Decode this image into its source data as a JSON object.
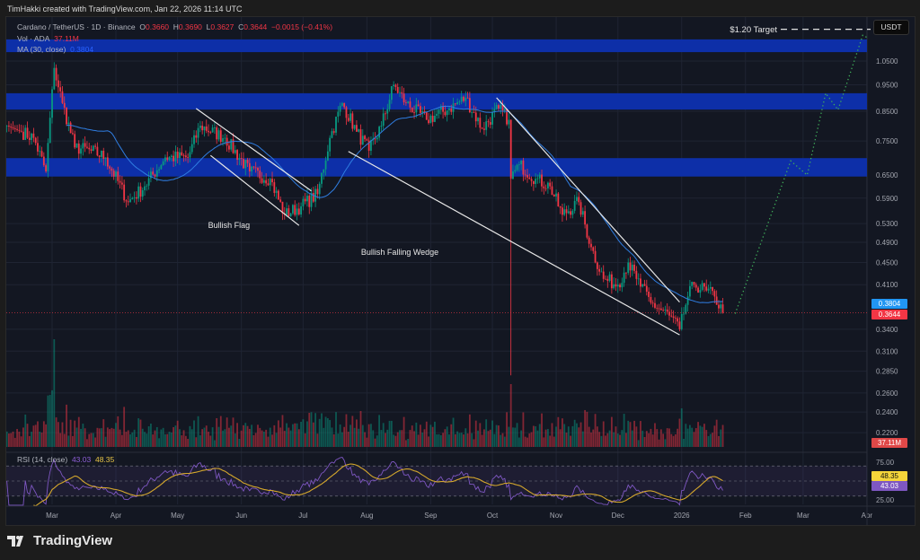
{
  "credit": "TimHakki created with TradingView.com, Jan 22, 2026 11:14 UTC",
  "legend": {
    "symbol": "Cardano / TetherUS · 1D · Binance",
    "o_label": "O",
    "o": "0.3660",
    "h_label": "H",
    "h": "0.3690",
    "l_label": "L",
    "l": "0.3627",
    "c_label": "C",
    "c": "0.3644",
    "change": "−0.0015 (−0.41%)",
    "vol_label": "Vol · ADA",
    "vol": "37.11M",
    "ma_label": "MA (30, close)",
    "ma": "0.3804",
    "rsi_label": "RSI (14, close)",
    "rsi": "43.03",
    "rsi_ma": "48.35"
  },
  "currency_button": "USDT",
  "tags": {
    "ma": "0.3804",
    "last": "0.3644",
    "volume": "37.11M",
    "rsi_ma": "48.35",
    "rsi": "43.03"
  },
  "logo": "TradingView",
  "colors": {
    "up": "#089981",
    "down": "#f23645",
    "ma": "#2f7de1",
    "zone": "#0d2fa8",
    "projection": "#3fae5a",
    "rsi": "#7e57c2",
    "rsi_ma": "#d4a72c"
  },
  "chart_data": {
    "type": "candlestick",
    "scale": "log",
    "price_ticks": [
      1.05,
      0.95,
      0.85,
      0.75,
      0.65,
      0.59,
      0.53,
      0.49,
      0.45,
      0.41,
      0.34,
      0.31,
      0.285,
      0.26,
      0.24,
      0.22
    ],
    "price_tick_labels": [
      "1.0500",
      "0.9500",
      "0.8500",
      "0.7500",
      "0.6500",
      "0.5900",
      "0.5300",
      "0.4900",
      "0.4500",
      "0.4100",
      "0.3400",
      "0.3100",
      "0.2850",
      "0.2600",
      "0.2400",
      "0.2200"
    ],
    "rsi_ticks": [
      "75.00",
      "25.00"
    ],
    "time_ticks": [
      {
        "date": "2025-03-01",
        "label": "Mar"
      },
      {
        "date": "2025-04-01",
        "label": "Apr"
      },
      {
        "date": "2025-05-01",
        "label": "May"
      },
      {
        "date": "2025-06-01",
        "label": "Jun"
      },
      {
        "date": "2025-07-01",
        "label": "Jul"
      },
      {
        "date": "2025-08-01",
        "label": "Aug"
      },
      {
        "date": "2025-09-01",
        "label": "Sep"
      },
      {
        "date": "2025-10-01",
        "label": "Oct"
      },
      {
        "date": "2025-11-01",
        "label": "Nov"
      },
      {
        "date": "2025-12-01",
        "label": "Dec"
      },
      {
        "date": "2026-01-01",
        "label": "2026"
      },
      {
        "date": "2026-02-01",
        "label": "Feb"
      },
      {
        "date": "2026-03-01",
        "label": "Mar"
      },
      {
        "date": "2026-04-01",
        "label": "Apr"
      }
    ],
    "close_path": [
      [
        "2025-02-07",
        0.8
      ],
      [
        "2025-02-14",
        0.78
      ],
      [
        "2025-02-20",
        0.76
      ],
      [
        "2025-02-26",
        0.66
      ],
      [
        "2025-03-02",
        1.02
      ],
      [
        "2025-03-06",
        0.88
      ],
      [
        "2025-03-12",
        0.73
      ],
      [
        "2025-03-20",
        0.72
      ],
      [
        "2025-03-27",
        0.7
      ],
      [
        "2025-04-07",
        0.58
      ],
      [
        "2025-04-15",
        0.62
      ],
      [
        "2025-04-25",
        0.7
      ],
      [
        "2025-05-06",
        0.7
      ],
      [
        "2025-05-12",
        0.8
      ],
      [
        "2025-05-24",
        0.76
      ],
      [
        "2025-06-05",
        0.66
      ],
      [
        "2025-06-15",
        0.64
      ],
      [
        "2025-06-22",
        0.55
      ],
      [
        "2025-06-30",
        0.57
      ],
      [
        "2025-07-08",
        0.6
      ],
      [
        "2025-07-14",
        0.76
      ],
      [
        "2025-07-20",
        0.88
      ],
      [
        "2025-07-27",
        0.78
      ],
      [
        "2025-08-02",
        0.72
      ],
      [
        "2025-08-08",
        0.8
      ],
      [
        "2025-08-14",
        0.95
      ],
      [
        "2025-08-20",
        0.88
      ],
      [
        "2025-08-30",
        0.82
      ],
      [
        "2025-09-10",
        0.86
      ],
      [
        "2025-09-18",
        0.9
      ],
      [
        "2025-09-26",
        0.79
      ],
      [
        "2025-10-04",
        0.86
      ],
      [
        "2025-10-09",
        0.82
      ],
      [
        "2025-10-10",
        0.64
      ],
      [
        "2025-10-14",
        0.68
      ],
      [
        "2025-10-22",
        0.64
      ],
      [
        "2025-10-29",
        0.62
      ],
      [
        "2025-11-04",
        0.55
      ],
      [
        "2025-11-12",
        0.58
      ],
      [
        "2025-11-18",
        0.48
      ],
      [
        "2025-11-24",
        0.42
      ],
      [
        "2025-12-01",
        0.41
      ],
      [
        "2025-12-06",
        0.45
      ],
      [
        "2025-12-10",
        0.42
      ],
      [
        "2025-12-17",
        0.38
      ],
      [
        "2025-12-26",
        0.36
      ],
      [
        "2025-12-31",
        0.34
      ],
      [
        "2026-01-04",
        0.39
      ],
      [
        "2026-01-07",
        0.41
      ],
      [
        "2026-01-13",
        0.4
      ],
      [
        "2026-01-17",
        0.39
      ],
      [
        "2026-01-21",
        0.3644
      ]
    ],
    "crash_wick": {
      "date": "2025-10-10",
      "low": 0.28
    },
    "zones": [
      {
        "low": 1.09,
        "high": 1.15
      },
      {
        "low": 0.856,
        "high": 0.917
      },
      {
        "low": 0.646,
        "high": 0.698
      }
    ],
    "annotations": [
      {
        "text": "Bullish Flag",
        "date": "2025-05-26",
        "price": 0.52
      },
      {
        "text": "Bullish Falling Wedge",
        "date": "2025-08-17",
        "price": 0.465
      }
    ],
    "trendlines": [
      [
        [
          "2025-05-10",
          0.86
        ],
        [
          "2025-07-05",
          0.608
        ]
      ],
      [
        [
          "2025-05-17",
          0.706
        ],
        [
          "2025-06-29",
          0.526
        ]
      ],
      [
        [
          "2025-10-03",
          0.9
        ],
        [
          "2025-12-31",
          0.381
        ]
      ],
      [
        [
          "2025-07-23",
          0.718
        ],
        [
          "2025-12-31",
          0.332
        ]
      ]
    ],
    "projection": [
      [
        "2026-01-27",
        0.363
      ],
      [
        "2026-02-23",
        0.69
      ],
      [
        "2026-03-03",
        0.65
      ],
      [
        "2026-03-12",
        0.917
      ],
      [
        "2026-03-18",
        0.855
      ],
      [
        "2026-03-30",
        1.17
      ],
      [
        "2026-04-02",
        1.155
      ]
    ],
    "target": {
      "label": "$1.20 Target",
      "price": 1.2
    }
  }
}
